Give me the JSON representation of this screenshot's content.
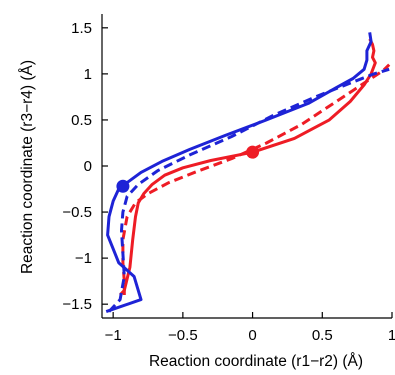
{
  "chart_data": {
    "type": "line",
    "title": "",
    "xlabel": "Reaction coordinate (r1−r2) (Å)",
    "ylabel": "Reaction coordinate (r3−r4) (Å)",
    "xlim": [
      -1.08,
      1.0
    ],
    "ylim": [
      -1.65,
      1.65
    ],
    "xticks": [
      -1,
      -0.5,
      0,
      0.5,
      1
    ],
    "xtick_labels": [
      "−1",
      "−0.5",
      "0",
      "0.5",
      "1"
    ],
    "yticks": [
      -1.5,
      -1,
      -0.5,
      0,
      0.5,
      1,
      1.5
    ],
    "ytick_labels": [
      "−1.5",
      "−1",
      "−0.5",
      "0",
      "0.5",
      "1",
      "1.5"
    ],
    "grid": false,
    "series": [
      {
        "style": "solid",
        "color": "#ee1c25",
        "x": [
          -0.95,
          -0.92,
          -0.88,
          -0.86,
          -0.84,
          -0.82,
          -0.78,
          -0.72,
          -0.63,
          -0.5,
          -0.3,
          0.0,
          0.3,
          0.55,
          0.7,
          0.8,
          0.85,
          0.87,
          0.88,
          0.86,
          0.87,
          0.86,
          0.84
        ],
        "y": [
          -1.4,
          -1.35,
          -1.1,
          -0.8,
          -0.55,
          -0.4,
          -0.3,
          -0.2,
          -0.1,
          -0.02,
          0.06,
          0.15,
          0.3,
          0.5,
          0.7,
          0.88,
          1.0,
          1.08,
          1.12,
          1.18,
          1.25,
          1.32,
          1.38
        ]
      },
      {
        "style": "dashed",
        "color": "#ee1c25",
        "x": [
          -0.92,
          -0.92,
          -0.93,
          -0.93,
          -0.9,
          -0.84,
          -0.75,
          -0.6,
          -0.4,
          -0.15,
          0.1,
          0.35,
          0.55,
          0.72,
          0.85,
          0.94,
          0.98
        ],
        "y": [
          -1.4,
          -1.25,
          -1.05,
          -0.8,
          -0.55,
          -0.4,
          -0.3,
          -0.18,
          -0.06,
          0.08,
          0.25,
          0.45,
          0.65,
          0.82,
          0.95,
          1.04,
          1.1
        ]
      },
      {
        "style": "solid",
        "color": "#1e23d6",
        "x": [
          -1.05,
          -0.8,
          -0.85,
          -0.96,
          -1.0,
          -1.04,
          -1.03,
          -1.0,
          -0.96,
          -0.9,
          -0.8,
          -0.65,
          -0.45,
          -0.2,
          0.1,
          0.4,
          0.6,
          0.72,
          0.8,
          0.82,
          0.82,
          0.85,
          0.84
        ],
        "y": [
          -1.58,
          -1.45,
          -1.2,
          -1.05,
          -0.9,
          -0.75,
          -0.55,
          -0.38,
          -0.25,
          -0.18,
          -0.07,
          0.05,
          0.18,
          0.33,
          0.5,
          0.68,
          0.85,
          0.95,
          1.05,
          1.15,
          1.25,
          1.35,
          1.45
        ]
      },
      {
        "style": "dashed",
        "color": "#1e23d6",
        "x": [
          -1.03,
          -0.95,
          -0.92,
          -0.93,
          -0.94,
          -0.93,
          -0.9,
          -0.82,
          -0.68,
          -0.45,
          -0.15,
          0.15,
          0.45,
          0.7,
          0.87,
          0.98
        ],
        "y": [
          -1.58,
          -1.45,
          -1.2,
          -0.95,
          -0.7,
          -0.5,
          -0.33,
          -0.2,
          -0.05,
          0.12,
          0.32,
          0.55,
          0.75,
          0.9,
          1.0,
          1.05
        ]
      }
    ],
    "points": [
      {
        "x": 0.0,
        "y": 0.15,
        "color": "#ee1c25"
      },
      {
        "x": -0.93,
        "y": -0.22,
        "color": "#1e23d6"
      }
    ]
  }
}
